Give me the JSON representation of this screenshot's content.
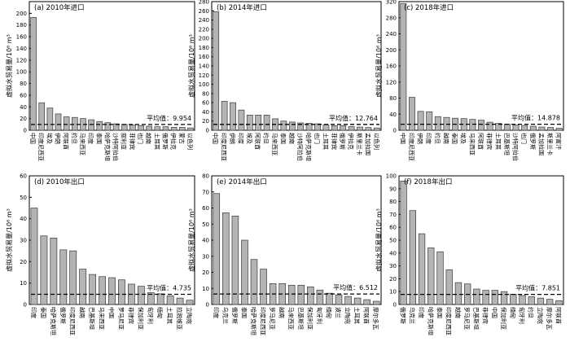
{
  "chart_data": [
    {
      "type": "bar",
      "title": "(a) 2010年进口",
      "ylabel": "虚拟水贸易量/10⁸ m³",
      "ylim": [
        0,
        220
      ],
      "yticks": [
        0,
        20,
        40,
        60,
        80,
        100,
        120,
        140,
        160,
        180,
        200
      ],
      "categories": [
        "中国",
        "印度尼西亚",
        "埃及",
        "伊朗",
        "阿联酋",
        "约旦",
        "马来西亚",
        "印度",
        "泰国",
        "哈萨克斯坦",
        "沙特阿拉伯",
        "叙利亚",
        "菲律宾",
        "也门",
        "越南",
        "土耳其",
        "俄罗斯",
        "伊拉克",
        "蒙古",
        "以色列"
      ],
      "values": [
        193,
        47,
        38,
        28,
        23,
        22,
        20,
        18,
        15,
        13,
        11,
        10,
        9,
        8,
        7,
        6,
        6,
        5,
        5,
        4
      ],
      "mean": 9.954,
      "mean_label": "平均值：9.954"
    },
    {
      "type": "bar",
      "title": "(b) 2014年进口",
      "ylabel": "虚拟水贸易量/10⁸ m³",
      "ylim": [
        0,
        280
      ],
      "yticks": [
        0,
        20,
        40,
        60,
        80,
        100,
        120,
        140,
        160,
        180,
        200,
        220,
        240,
        260,
        280
      ],
      "categories": [
        "中国",
        "印度尼西亚",
        "伊朗",
        "印度",
        "埃及",
        "阿联酋",
        "约旦",
        "马来西亚",
        "泰国",
        "越南",
        "沙特阿拉伯",
        "哈萨克斯坦",
        "也门",
        "土耳其",
        "菲律宾",
        "俄罗斯",
        "伊拉克",
        "斯里兰卡",
        "孟加拉国",
        "以色列"
      ],
      "values": [
        258,
        63,
        60,
        44,
        33,
        33,
        33,
        25,
        20,
        18,
        16,
        15,
        14,
        12,
        10,
        10,
        8,
        7,
        6,
        5
      ],
      "mean": 12.764,
      "mean_label": "平均值：12.764"
    },
    {
      "type": "bar",
      "title": "(c) 2018年进口",
      "ylabel": "虚拟水贸易量/10⁸ m³",
      "ylim": [
        0,
        320
      ],
      "yticks": [
        0,
        40,
        80,
        120,
        160,
        200,
        240,
        280,
        320
      ],
      "categories": [
        "中国",
        "印度尼西亚",
        "伊朗",
        "印度",
        "约旦",
        "越南",
        "泰国",
        "埃及",
        "马来西亚",
        "阿联酋",
        "菲律宾",
        "土耳其",
        "巴基斯坦",
        "沙特阿拉伯",
        "也门",
        "俄罗斯",
        "孟加拉国",
        "斯里兰卡",
        "阿富汗"
      ],
      "values": [
        315,
        82,
        47,
        46,
        34,
        32,
        30,
        29,
        27,
        25,
        20,
        17,
        15,
        13,
        12,
        10,
        8,
        7,
        5
      ],
      "mean": 14.878,
      "mean_label": "平均值：14.878"
    },
    {
      "type": "bar",
      "title": "(d) 2010年出口",
      "ylabel": "虚拟水贸易量/10⁸ m³",
      "ylim": [
        0,
        60
      ],
      "yticks": [
        0,
        10,
        20,
        30,
        40,
        50,
        60
      ],
      "categories": [
        "印度",
        "泰国",
        "哈萨克斯坦",
        "俄罗斯",
        "印度尼西亚",
        "越南",
        "巴基斯坦",
        "马来西亚",
        "中国",
        "罗马尼亚",
        "菲律宾",
        "保加利亚",
        "匈牙利",
        "缅甸",
        "土耳其",
        "拉脱维亚",
        "立陶宛"
      ],
      "values": [
        45,
        32,
        31,
        25.5,
        25,
        16.5,
        14,
        13,
        12.5,
        11.5,
        9.5,
        8.5,
        5.5,
        5,
        4,
        3,
        2
      ],
      "mean": 4.735,
      "mean_label": "平均值：4.735"
    },
    {
      "type": "bar",
      "title": "(e) 2014年出口",
      "ylabel": "虚拟水贸易量/10⁸ m³",
      "ylim": [
        0,
        80
      ],
      "yticks": [
        0,
        10,
        20,
        30,
        40,
        50,
        60,
        70,
        80
      ],
      "categories": [
        "印度",
        "乌克兰",
        "俄罗斯",
        "泰国",
        "哈萨克斯坦",
        "印度尼西亚",
        "罗马尼亚",
        "越南",
        "马来西亚",
        "巴基斯坦",
        "保加利亚",
        "匈牙利",
        "缅甸",
        "波兰",
        "立陶宛",
        "土耳其",
        "阿联酋",
        "摩尔多瓦"
      ],
      "values": [
        69,
        57,
        55,
        40,
        28,
        22,
        13,
        13,
        12,
        12,
        11,
        9,
        7,
        6,
        5,
        4,
        3,
        2
      ],
      "mean": 6.512,
      "mean_label": "平均值：6.512"
    },
    {
      "type": "bar",
      "title": "(f) 2018年出口",
      "ylabel": "虚拟水贸易量/10⁸ m³",
      "ylim": [
        0,
        100
      ],
      "yticks": [
        0,
        10,
        20,
        30,
        40,
        50,
        60,
        70,
        80,
        90,
        100
      ],
      "categories": [
        "俄罗斯",
        "乌克兰",
        "印度",
        "哈萨克斯坦",
        "泰国",
        "印度尼西亚",
        "越南",
        "罗马尼亚",
        "巴基斯坦",
        "菲律宾",
        "中国",
        "保加利亚",
        "缅甸",
        "匈牙利",
        "约旦",
        "立陶宛",
        "摩尔多瓦",
        "阿联酋"
      ],
      "values": [
        96,
        73,
        55,
        44,
        41,
        27,
        17,
        16,
        12,
        11,
        11,
        10,
        8,
        7,
        6,
        5,
        4,
        3
      ],
      "mean": 7.851,
      "mean_label": "平均值：7.851"
    }
  ]
}
